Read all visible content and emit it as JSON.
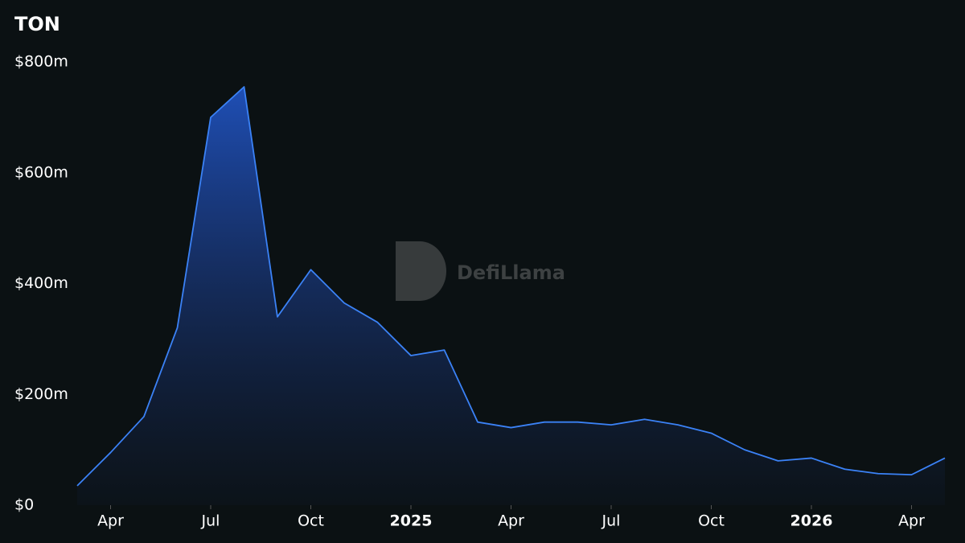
{
  "chart_data": {
    "type": "area",
    "title": "TON",
    "watermark": "DefiLlama",
    "x": [
      "2024-03",
      "2024-04",
      "2024-05",
      "2024-06",
      "2024-07",
      "2024-08",
      "2024-09",
      "2024-10",
      "2024-11",
      "2024-12",
      "2025-01",
      "2025-02",
      "2025-03",
      "2025-04",
      "2025-05",
      "2025-06",
      "2025-07",
      "2025-08",
      "2025-09",
      "2025-10",
      "2025-11",
      "2025-12",
      "2026-01",
      "2026-02",
      "2026-03",
      "2026-04",
      "2026-05"
    ],
    "series": [
      {
        "name": "TON",
        "color": "#3b82f6",
        "values": [
          35000000,
          95000000,
          160000000,
          320000000,
          700000000,
          755000000,
          340000000,
          425000000,
          365000000,
          330000000,
          270000000,
          280000000,
          150000000,
          140000000,
          150000000,
          150000000,
          145000000,
          155000000,
          145000000,
          130000000,
          100000000,
          80000000,
          85000000,
          65000000,
          57000000,
          55000000,
          85000000
        ]
      }
    ],
    "xlim": [
      "2024-03",
      "2026-05"
    ],
    "xticks": [
      {
        "value": "2024-04",
        "label": "Apr"
      },
      {
        "value": "2024-07",
        "label": "Jul"
      },
      {
        "value": "2024-10",
        "label": "Oct"
      },
      {
        "value": "2025-01",
        "label": "2025"
      },
      {
        "value": "2025-04",
        "label": "Apr"
      },
      {
        "value": "2025-07",
        "label": "Jul"
      },
      {
        "value": "2025-10",
        "label": "Oct"
      },
      {
        "value": "2026-01",
        "label": "2026"
      },
      {
        "value": "2026-04",
        "label": "Apr"
      }
    ],
    "ylim": [
      0,
      800000000
    ],
    "yticks": [
      {
        "value": 0,
        "label": "$0"
      },
      {
        "value": 200000000,
        "label": "$200m"
      },
      {
        "value": 400000000,
        "label": "$400m"
      },
      {
        "value": 600000000,
        "label": "$600m"
      },
      {
        "value": 800000000,
        "label": "$800m"
      }
    ],
    "grid": false
  }
}
